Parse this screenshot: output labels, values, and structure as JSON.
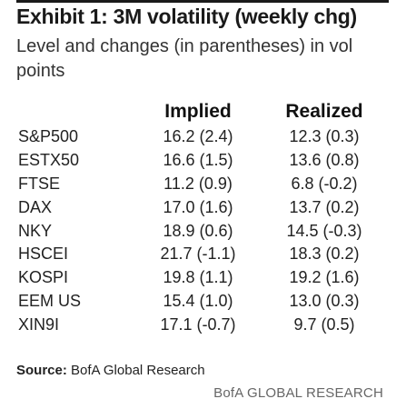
{
  "exhibit": {
    "number": "Exhibit 1:",
    "title": "3M volatility (weekly chg)",
    "subtitle": "Level and changes (in parentheses) in vol points"
  },
  "table": {
    "headers": {
      "name": "",
      "implied": "Implied",
      "realized": "Realized"
    },
    "rows": [
      {
        "name": "S&P500",
        "implied": "16.2 (2.4)",
        "realized": "12.3 (0.3)"
      },
      {
        "name": "ESTX50",
        "implied": "16.6 (1.5)",
        "realized": "13.6 (0.8)"
      },
      {
        "name": "FTSE",
        "implied": "11.2 (0.9)",
        "realized": "6.8 (-0.2)"
      },
      {
        "name": "DAX",
        "implied": "17.0 (1.6)",
        "realized": "13.7 (0.2)"
      },
      {
        "name": "NKY",
        "implied": "18.9 (0.6)",
        "realized": "14.5 (-0.3)"
      },
      {
        "name": "HSCEI",
        "implied": "21.7 (-1.1)",
        "realized": "18.3 (0.2)"
      },
      {
        "name": "KOSPI",
        "implied": "19.8 (1.1)",
        "realized": "19.2 (1.6)"
      },
      {
        "name": "EEM US",
        "implied": "15.4 (1.0)",
        "realized": "13.0 (0.3)"
      },
      {
        "name": "XIN9I",
        "implied": "17.1 (-0.7)",
        "realized": "9.7 (0.5)"
      }
    ]
  },
  "source": {
    "label": "Source:",
    "text": " BofA Global Research"
  },
  "brand": "BofA GLOBAL RESEARCH"
}
